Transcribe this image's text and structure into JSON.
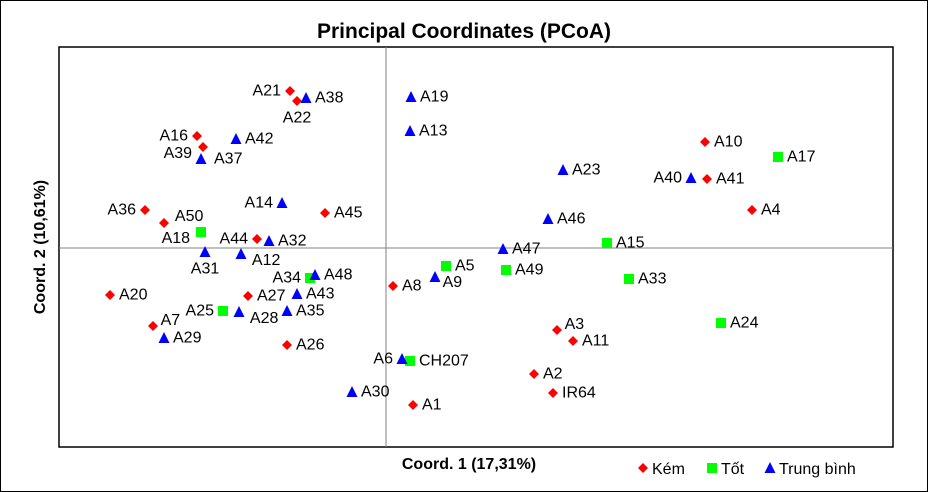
{
  "chart_data": {
    "type": "scatter",
    "title": "Principal Coordinates (PCoA)",
    "xlabel": "Coord. 1 (17,31%)",
    "ylabel": "Coord. 2 (10,61%)",
    "xlim": [
      -3.27,
      5.07
    ],
    "ylim": [
      -1.99,
      2.01
    ],
    "grid": false,
    "zero_lines": true,
    "legend_position": "bottom-right",
    "series": [
      {
        "name": "Kém",
        "color": "#ff0000",
        "marker": "diamond",
        "points": [
          {
            "label": "A21",
            "x": -0.96,
            "y": 1.57
          },
          {
            "label": "A22",
            "x": -0.89,
            "y": 1.47
          },
          {
            "label": "A16",
            "x": -1.89,
            "y": 1.12
          },
          {
            "label": "A39",
            "x": -1.83,
            "y": 1.01
          },
          {
            "label": "A36",
            "x": -2.41,
            "y": 0.38
          },
          {
            "label": "A50",
            "x": -2.22,
            "y": 0.25
          },
          {
            "label": "A44",
            "x": -1.29,
            "y": 0.09
          },
          {
            "label": "A45",
            "x": -0.61,
            "y": 0.35
          },
          {
            "label": "A20",
            "x": -2.76,
            "y": -0.47
          },
          {
            "label": "A27",
            "x": -1.38,
            "y": -0.48
          },
          {
            "label": "A7",
            "x": -2.33,
            "y": -0.78
          },
          {
            "label": "A26",
            "x": -0.99,
            "y": -0.97
          },
          {
            "label": "A8",
            "x": 0.07,
            "y": -0.38
          },
          {
            "label": "A1",
            "x": 0.27,
            "y": -1.57
          },
          {
            "label": "A3",
            "x": 1.71,
            "y": -0.82
          },
          {
            "label": "A11",
            "x": 1.87,
            "y": -0.93
          },
          {
            "label": "A2",
            "x": 1.48,
            "y": -1.26
          },
          {
            "label": "IR64",
            "x": 1.67,
            "y": -1.45
          },
          {
            "label": "A10",
            "x": 3.19,
            "y": 1.06
          },
          {
            "label": "A41",
            "x": 3.21,
            "y": 0.69
          },
          {
            "label": "A4",
            "x": 3.66,
            "y": 0.38
          }
        ]
      },
      {
        "name": "Tốt",
        "color": "#00ff00",
        "marker": "square",
        "points": [
          {
            "label": "A17",
            "x": 3.92,
            "y": 0.91
          },
          {
            "label": "A15",
            "x": 2.21,
            "y": 0.05
          },
          {
            "label": "A49",
            "x": 1.2,
            "y": -0.22
          },
          {
            "label": "A5",
            "x": 0.6,
            "y": -0.18
          },
          {
            "label": "A33",
            "x": 2.43,
            "y": -0.31
          },
          {
            "label": "A24",
            "x": 3.35,
            "y": -0.75
          },
          {
            "label": "A18",
            "x": -1.85,
            "y": 0.16
          },
          {
            "label": "A34",
            "x": -0.76,
            "y": -0.3
          },
          {
            "label": "A25",
            "x": -1.63,
            "y": -0.63
          },
          {
            "label": "CH207",
            "x": 0.24,
            "y": -1.13
          }
        ]
      },
      {
        "name": "Trung bình",
        "color": "#0000ff",
        "marker": "triangle",
        "points": [
          {
            "label": "A38",
            "x": -0.8,
            "y": 1.5
          },
          {
            "label": "A19",
            "x": 0.25,
            "y": 1.51
          },
          {
            "label": "A13",
            "x": 0.24,
            "y": 1.17
          },
          {
            "label": "A42",
            "x": -1.5,
            "y": 1.09
          },
          {
            "label": "A37",
            "x": -1.85,
            "y": 0.89
          },
          {
            "label": "A14",
            "x": -1.04,
            "y": 0.45
          },
          {
            "label": "A23",
            "x": 1.77,
            "y": 0.78
          },
          {
            "label": "A46",
            "x": 1.62,
            "y": 0.29
          },
          {
            "label": "A47",
            "x": 1.17,
            "y": -0.01
          },
          {
            "label": "A40",
            "x": 3.05,
            "y": 0.7
          },
          {
            "label": "A31",
            "x": -1.81,
            "y": -0.04
          },
          {
            "label": "A12",
            "x": -1.45,
            "y": -0.06
          },
          {
            "label": "A32",
            "x": -1.17,
            "y": 0.07
          },
          {
            "label": "A48",
            "x": -0.71,
            "y": -0.27
          },
          {
            "label": "A43",
            "x": -0.89,
            "y": -0.46
          },
          {
            "label": "A9",
            "x": 0.49,
            "y": -0.29
          },
          {
            "label": "A28",
            "x": -1.47,
            "y": -0.64
          },
          {
            "label": "A35",
            "x": -0.99,
            "y": -0.63
          },
          {
            "label": "A29",
            "x": -2.22,
            "y": -0.9
          },
          {
            "label": "A30",
            "x": -0.34,
            "y": -1.44
          },
          {
            "label": "A6",
            "x": 0.16,
            "y": -1.11
          }
        ]
      }
    ]
  }
}
